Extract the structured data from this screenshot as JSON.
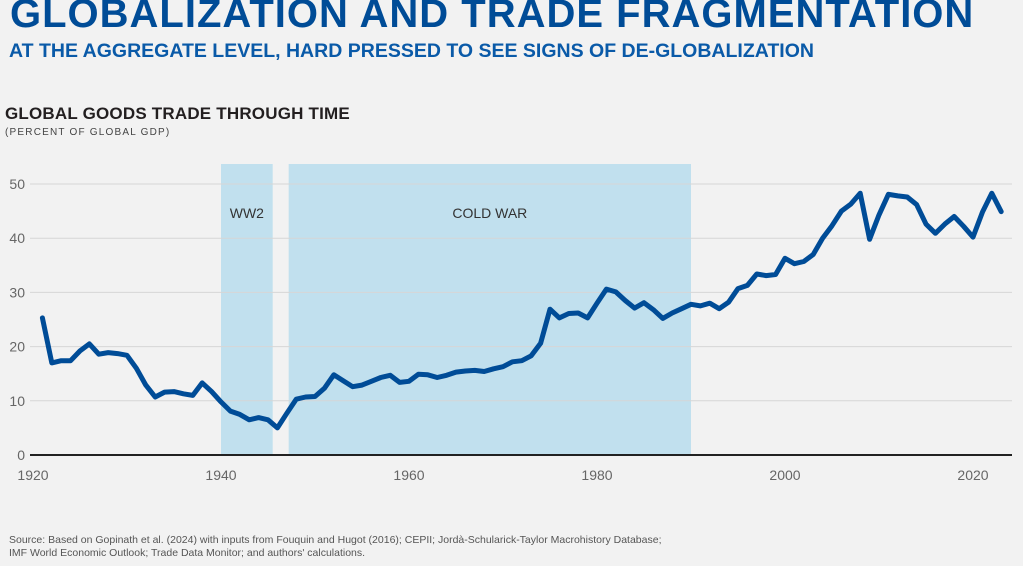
{
  "header": {
    "title": "GLOBALIZATION AND TRADE FRAGMENTATION",
    "subtitle": "AT THE AGGREGATE LEVEL, HARD PRESSED TO SEE SIGNS OF DE-GLOBALIZATION"
  },
  "footer": {
    "source_line1": "Source: Based on Gopinath et al. (2024) with inputs from Fouquin and Hugot (2016); CEPII; Jordà-Schularick-Taylor Macrohistory Database;",
    "source_line2": "IMF World Economic Outlook; Trade Data Monitor; and authors' calculations."
  },
  "chart_data": {
    "type": "line",
    "title": "GLOBAL GOODS TRADE THROUGH TIME",
    "subtitle": "(PERCENT OF GLOBAL GDP)",
    "xlabel": "",
    "ylabel": "",
    "xlim": [
      1920,
      2025
    ],
    "ylim": [
      0,
      53
    ],
    "x_ticks": [
      1920,
      1940,
      1960,
      1980,
      2000,
      2020
    ],
    "y_ticks": [
      0,
      10,
      20,
      30,
      40,
      50
    ],
    "grid": "horizontal",
    "line_color": "#004c97",
    "shade_color": "#c1e0ee",
    "shaded_periods": [
      {
        "label": "WW2",
        "start": 1940,
        "end": 1945.5
      },
      {
        "label": "COLD WAR",
        "start": 1947.2,
        "end": 1990
      }
    ],
    "x": [
      1921,
      1922,
      1923,
      1924,
      1925,
      1926,
      1927,
      1928,
      1929,
      1930,
      1931,
      1932,
      1933,
      1934,
      1935,
      1936,
      1937,
      1938,
      1939,
      1940,
      1941,
      1942,
      1943,
      1944,
      1945,
      1946,
      1947,
      1948,
      1949,
      1950,
      1951,
      1952,
      1953,
      1954,
      1955,
      1956,
      1957,
      1958,
      1959,
      1960,
      1961,
      1962,
      1963,
      1964,
      1965,
      1966,
      1967,
      1968,
      1969,
      1970,
      1971,
      1972,
      1973,
      1974,
      1975,
      1976,
      1977,
      1978,
      1979,
      1980,
      1981,
      1982,
      1983,
      1984,
      1985,
      1986,
      1987,
      1988,
      1989,
      1990,
      1991,
      1992,
      1993,
      1994,
      1995,
      1996,
      1997,
      1998,
      1999,
      2000,
      2001,
      2002,
      2003,
      2004,
      2005,
      2006,
      2007,
      2008,
      2009,
      2010,
      2011,
      2012,
      2013,
      2014,
      2015,
      2016,
      2017,
      2018,
      2019,
      2020,
      2021,
      2022,
      2023
    ],
    "y": [
      25.3,
      17.0,
      17.4,
      17.4,
      19.2,
      20.5,
      18.6,
      18.9,
      18.7,
      18.4,
      16.0,
      12.9,
      10.7,
      11.6,
      11.7,
      11.3,
      11.0,
      13.3,
      11.7,
      9.8,
      8.1,
      7.5,
      6.5,
      6.9,
      6.5,
      5.0,
      7.7,
      10.3,
      10.7,
      10.8,
      12.3,
      14.8,
      13.7,
      12.6,
      12.9,
      13.6,
      14.3,
      14.7,
      13.4,
      13.6,
      14.9,
      14.8,
      14.3,
      14.7,
      15.3,
      15.5,
      15.6,
      15.4,
      15.9,
      16.3,
      17.2,
      17.4,
      18.3,
      20.6,
      26.9,
      25.3,
      26.1,
      26.2,
      25.3,
      28.0,
      30.6,
      30.1,
      28.5,
      27.1,
      28.1,
      26.8,
      25.2,
      26.2,
      27.0,
      27.8,
      27.5,
      28.0,
      27.0,
      28.2,
      30.7,
      31.3,
      33.4,
      33.1,
      33.3,
      36.3,
      35.3,
      35.7,
      37.0,
      40.0,
      42.3,
      45.0,
      46.3,
      48.3,
      39.8,
      44.3,
      48.1,
      47.8,
      47.6,
      46.2,
      42.6,
      40.9,
      42.6,
      44.0,
      42.2,
      40.2,
      44.8,
      48.3,
      44.9
    ]
  }
}
